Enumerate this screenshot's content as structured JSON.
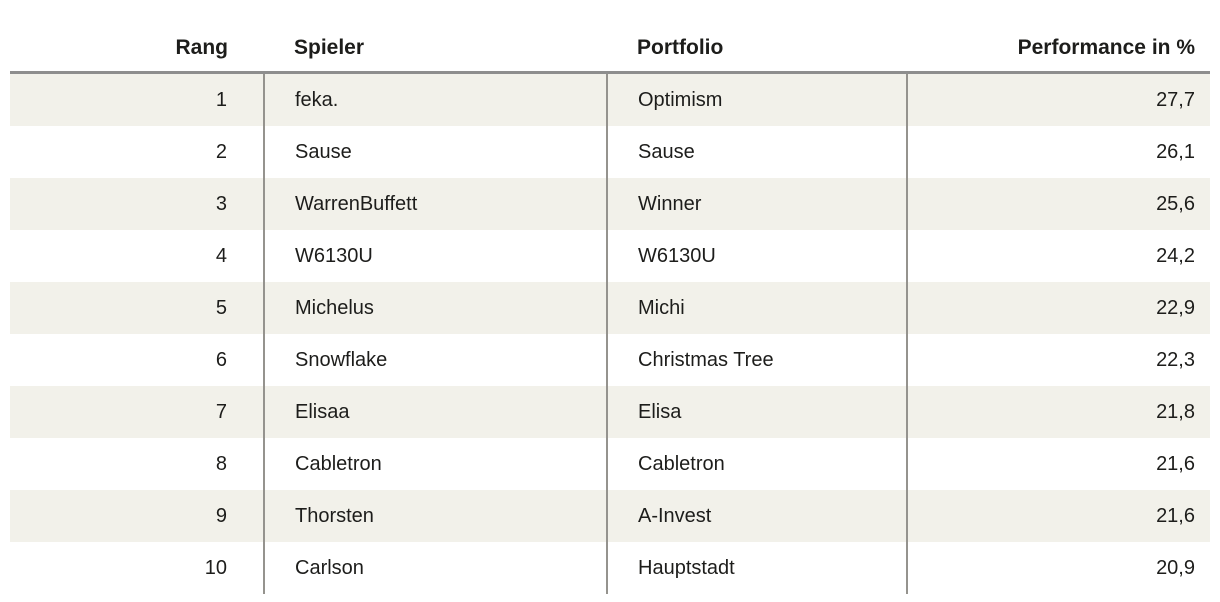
{
  "table": {
    "headers": {
      "rank": "Rang",
      "player": "Spieler",
      "portfolio": "Portfolio",
      "performance": "Performance in %"
    },
    "rows": [
      {
        "rank": "1",
        "player": "feka.",
        "portfolio": "Optimism",
        "performance": "27,7"
      },
      {
        "rank": "2",
        "player": "Sause",
        "portfolio": "Sause",
        "performance": "26,1"
      },
      {
        "rank": "3",
        "player": "WarrenBuffett",
        "portfolio": "Winner",
        "performance": "25,6"
      },
      {
        "rank": "4",
        "player": "W6130U",
        "portfolio": "W6130U",
        "performance": "24,2"
      },
      {
        "rank": "5",
        "player": "Michelus",
        "portfolio": "Michi",
        "performance": "22,9"
      },
      {
        "rank": "6",
        "player": "Snowflake",
        "portfolio": "Christmas Tree",
        "performance": "22,3"
      },
      {
        "rank": "7",
        "player": "Elisaa",
        "portfolio": "Elisa",
        "performance": "21,8"
      },
      {
        "rank": "8",
        "player": "Cabletron",
        "portfolio": "Cabletron",
        "performance": "21,6"
      },
      {
        "rank": "9",
        "player": "Thorsten",
        "portfolio": "A-Invest",
        "performance": "21,6"
      },
      {
        "rank": "10",
        "player": "Carlson",
        "portfolio": "Hauptstadt",
        "performance": "20,9"
      }
    ],
    "colors": {
      "row_stripe": "#f2f1ea",
      "header_border": "#8e8e8e",
      "column_divider": "#95938e",
      "text": "#1d1d1b"
    }
  }
}
